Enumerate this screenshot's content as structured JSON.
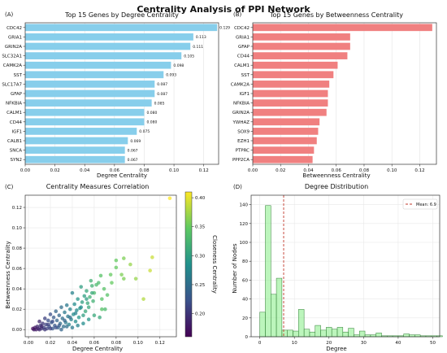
{
  "figure": {
    "title": "Centrality Analysis of PPI Network"
  },
  "chart_data": [
    {
      "panel": "(A)",
      "type": "bar",
      "orientation": "horizontal",
      "title": "Top 15 Genes by Degree Centrality",
      "xlabel": "Degree Centrality",
      "ylabel": "",
      "xlim": [
        0,
        0.13
      ],
      "xticks": [
        0.0,
        0.02,
        0.04,
        0.06,
        0.08,
        0.1,
        0.12
      ],
      "xtick_labels": [
        "0.00",
        "0.02",
        "0.04",
        "0.06",
        "0.08",
        "0.10",
        "0.12"
      ],
      "categories": [
        "CDC42",
        "GRIA1",
        "GRIN2A",
        "SLC32A1",
        "CAMK2A",
        "SST",
        "SLC17A7",
        "GFAP",
        "NFKBIA",
        "CALM1",
        "CD44",
        "IGF1",
        "CALB1",
        "SNCA",
        "SYN2"
      ],
      "values": [
        0.129,
        0.113,
        0.111,
        0.105,
        0.098,
        0.093,
        0.087,
        0.087,
        0.085,
        0.08,
        0.08,
        0.075,
        0.069,
        0.067,
        0.067
      ],
      "value_labels": [
        "0.129",
        "0.113",
        "0.111",
        "0.105",
        "0.098",
        "0.093",
        "0.087",
        "0.087",
        "0.085",
        "0.080",
        "0.080",
        "0.075",
        "0.069",
        "0.067",
        "0.067"
      ],
      "color": "#87ceeb",
      "grid": true
    },
    {
      "panel": "(B)",
      "type": "bar",
      "orientation": "horizontal",
      "title": "Top 15 Genes by Betweenness Centrality",
      "xlabel": "Betweenness Centrality",
      "ylabel": "",
      "xlim": [
        0,
        0.132
      ],
      "xticks": [
        0.0,
        0.02,
        0.04,
        0.06,
        0.08,
        0.1,
        0.12
      ],
      "xtick_labels": [
        "0.00",
        "0.02",
        "0.04",
        "0.06",
        "0.08",
        "0.10",
        "0.12"
      ],
      "categories": [
        "CDC42",
        "GRIA1",
        "GFAP",
        "CD44",
        "CALM1",
        "SST",
        "CAMK2A",
        "IGF1",
        "NFKBIA",
        "GRIN2A",
        "YWHAZ",
        "SOX9",
        "EZH1",
        "PTPRC",
        "PPP2CA"
      ],
      "values": [
        0.129,
        0.07,
        0.07,
        0.068,
        0.061,
        0.058,
        0.055,
        0.054,
        0.054,
        0.053,
        0.048,
        0.047,
        0.046,
        0.044,
        0.043
      ],
      "color": "#f08080",
      "grid": true
    },
    {
      "panel": "(C)",
      "type": "scatter",
      "title": "Centrality Measures Correlation",
      "xlabel": "Degree Centrality",
      "ylabel": "Betweenness Centrality",
      "xlim": [
        -0.003,
        0.135
      ],
      "ylim": [
        -0.007,
        0.132
      ],
      "xticks": [
        0.0,
        0.02,
        0.04,
        0.06,
        0.08,
        0.1,
        0.12
      ],
      "xtick_labels": [
        "0.00",
        "0.02",
        "0.04",
        "0.06",
        "0.08",
        "0.10",
        "0.12"
      ],
      "yticks": [
        0.0,
        0.02,
        0.04,
        0.06,
        0.08,
        0.1,
        0.12
      ],
      "ytick_labels": [
        "0.00",
        "0.02",
        "0.04",
        "0.06",
        "0.08",
        "0.10",
        "0.12"
      ],
      "colorbar": {
        "label": "Closeness Centrality",
        "range": [
          0.16,
          0.41
        ],
        "ticks": [
          0.2,
          0.25,
          0.3,
          0.35,
          0.4
        ],
        "tick_labels": [
          "0.20",
          "0.25",
          "0.30",
          "0.35",
          "0.40"
        ],
        "colormap": [
          "#440154",
          "#3b528b",
          "#21918c",
          "#5ec962",
          "#fde725"
        ]
      },
      "points": [
        [
          0.129,
          0.129,
          0.41
        ],
        [
          0.113,
          0.071,
          0.39
        ],
        [
          0.111,
          0.058,
          0.39
        ],
        [
          0.105,
          0.03,
          0.38
        ],
        [
          0.098,
          0.05,
          0.37
        ],
        [
          0.093,
          0.064,
          0.37
        ],
        [
          0.087,
          0.07,
          0.36
        ],
        [
          0.087,
          0.05,
          0.36
        ],
        [
          0.085,
          0.054,
          0.36
        ],
        [
          0.08,
          0.061,
          0.35
        ],
        [
          0.08,
          0.068,
          0.35
        ],
        [
          0.075,
          0.054,
          0.35
        ],
        [
          0.069,
          0.04,
          0.34
        ],
        [
          0.067,
          0.03,
          0.34
        ],
        [
          0.067,
          0.02,
          0.34
        ],
        [
          0.066,
          0.053,
          0.34
        ],
        [
          0.064,
          0.046,
          0.33
        ],
        [
          0.062,
          0.044,
          0.33
        ],
        [
          0.06,
          0.036,
          0.33
        ],
        [
          0.059,
          0.028,
          0.32
        ],
        [
          0.058,
          0.043,
          0.32
        ],
        [
          0.057,
          0.048,
          0.32
        ],
        [
          0.056,
          0.032,
          0.32
        ],
        [
          0.055,
          0.022,
          0.31
        ],
        [
          0.054,
          0.026,
          0.31
        ],
        [
          0.053,
          0.038,
          0.31
        ],
        [
          0.052,
          0.018,
          0.31
        ],
        [
          0.051,
          0.033,
          0.3
        ],
        [
          0.05,
          0.014,
          0.3
        ],
        [
          0.049,
          0.027,
          0.3
        ],
        [
          0.048,
          0.042,
          0.3
        ],
        [
          0.047,
          0.021,
          0.29
        ],
        [
          0.046,
          0.012,
          0.29
        ],
        [
          0.045,
          0.03,
          0.29
        ],
        [
          0.044,
          0.019,
          0.28
        ],
        [
          0.043,
          0.008,
          0.28
        ],
        [
          0.042,
          0.025,
          0.28
        ],
        [
          0.041,
          0.015,
          0.28
        ],
        [
          0.04,
          0.036,
          0.27
        ],
        [
          0.039,
          0.01,
          0.27
        ],
        [
          0.038,
          0.02,
          0.27
        ],
        [
          0.037,
          0.005,
          0.27
        ],
        [
          0.036,
          0.013,
          0.26
        ],
        [
          0.035,
          0.024,
          0.26
        ],
        [
          0.034,
          0.007,
          0.26
        ],
        [
          0.033,
          0.017,
          0.26
        ],
        [
          0.032,
          0.003,
          0.25
        ],
        [
          0.031,
          0.011,
          0.25
        ],
        [
          0.03,
          0.022,
          0.25
        ],
        [
          0.029,
          0.006,
          0.25
        ],
        [
          0.028,
          0.014,
          0.24
        ],
        [
          0.027,
          0.002,
          0.24
        ],
        [
          0.026,
          0.009,
          0.24
        ],
        [
          0.025,
          0.018,
          0.24
        ],
        [
          0.024,
          0.004,
          0.23
        ],
        [
          0.023,
          0.012,
          0.23
        ],
        [
          0.022,
          0.001,
          0.23
        ],
        [
          0.021,
          0.007,
          0.23
        ],
        [
          0.02,
          0.015,
          0.22
        ],
        [
          0.019,
          0.003,
          0.22
        ],
        [
          0.018,
          0.009,
          0.22
        ],
        [
          0.017,
          0.001,
          0.21
        ],
        [
          0.016,
          0.005,
          0.21
        ],
        [
          0.015,
          0.011,
          0.21
        ],
        [
          0.014,
          0.002,
          0.21
        ],
        [
          0.013,
          0.006,
          0.2
        ],
        [
          0.012,
          0.001,
          0.2
        ],
        [
          0.011,
          0.004,
          0.2
        ],
        [
          0.01,
          0.008,
          0.19
        ],
        [
          0.009,
          0.001,
          0.19
        ],
        [
          0.008,
          0.003,
          0.19
        ],
        [
          0.007,
          0.0,
          0.18
        ],
        [
          0.006,
          0.002,
          0.18
        ],
        [
          0.005,
          0.0,
          0.18
        ],
        [
          0.004,
          0.001,
          0.17
        ],
        [
          0.03,
          0.0,
          0.24
        ],
        [
          0.025,
          0.002,
          0.22
        ],
        [
          0.02,
          0.001,
          0.21
        ],
        [
          0.015,
          0.0,
          0.2
        ],
        [
          0.01,
          0.0,
          0.19
        ],
        [
          0.035,
          0.003,
          0.25
        ],
        [
          0.04,
          0.002,
          0.26
        ],
        [
          0.045,
          0.004,
          0.27
        ],
        [
          0.05,
          0.006,
          0.28
        ],
        [
          0.055,
          0.01,
          0.29
        ],
        [
          0.06,
          0.014,
          0.31
        ],
        [
          0.065,
          0.012,
          0.31
        ],
        [
          0.07,
          0.02,
          0.33
        ],
        [
          0.072,
          0.034,
          0.34
        ],
        [
          0.076,
          0.046,
          0.35
        ],
        [
          0.012,
          0.003,
          0.19
        ],
        [
          0.018,
          0.005,
          0.21
        ],
        [
          0.022,
          0.008,
          0.22
        ],
        [
          0.028,
          0.004,
          0.23
        ],
        [
          0.033,
          0.009,
          0.24
        ],
        [
          0.038,
          0.012,
          0.25
        ],
        [
          0.043,
          0.016,
          0.27
        ],
        [
          0.048,
          0.022,
          0.28
        ],
        [
          0.053,
          0.03,
          0.3
        ],
        [
          0.058,
          0.036,
          0.31
        ]
      ],
      "grid": true
    },
    {
      "panel": "(D)",
      "type": "bar",
      "subtype": "histogram",
      "title": "Degree Distribution",
      "xlabel": "Degree",
      "ylabel": "Number of Nodes",
      "xlim": [
        -2.5,
        52
      ],
      "ylim": [
        0,
        150
      ],
      "xticks": [
        0,
        10,
        20,
        30,
        40,
        50
      ],
      "xtick_labels": [
        "0",
        "10",
        "20",
        "30",
        "40",
        "50"
      ],
      "yticks": [
        0,
        20,
        40,
        60,
        80,
        100,
        120,
        140
      ],
      "ytick_labels": [
        "0",
        "20",
        "40",
        "60",
        "80",
        "100",
        "120",
        "140"
      ],
      "bin_width": 1.6,
      "bin_start": 0,
      "counts": [
        26,
        139,
        45,
        62,
        7,
        7,
        6,
        29,
        8,
        5,
        12,
        7,
        10,
        8,
        10,
        5,
        9,
        2,
        6,
        2,
        2,
        4,
        1,
        1,
        1,
        1,
        3,
        2,
        2,
        1,
        1,
        1,
        1,
        0,
        1,
        0,
        1
      ],
      "color": "#90ee90",
      "mean": {
        "value": 6.9,
        "label": "Mean: 6.9",
        "color": "#c0392b"
      },
      "grid": true
    }
  ]
}
